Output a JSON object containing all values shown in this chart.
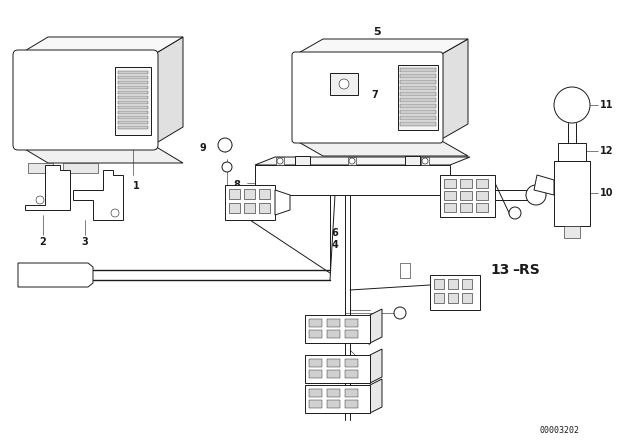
{
  "background_color": "#ffffff",
  "line_color": "#1a1a1a",
  "fig_width": 6.4,
  "fig_height": 4.48,
  "dpi": 100,
  "lw_main": 0.7,
  "lw_thin": 0.4,
  "lw_thick": 1.0
}
